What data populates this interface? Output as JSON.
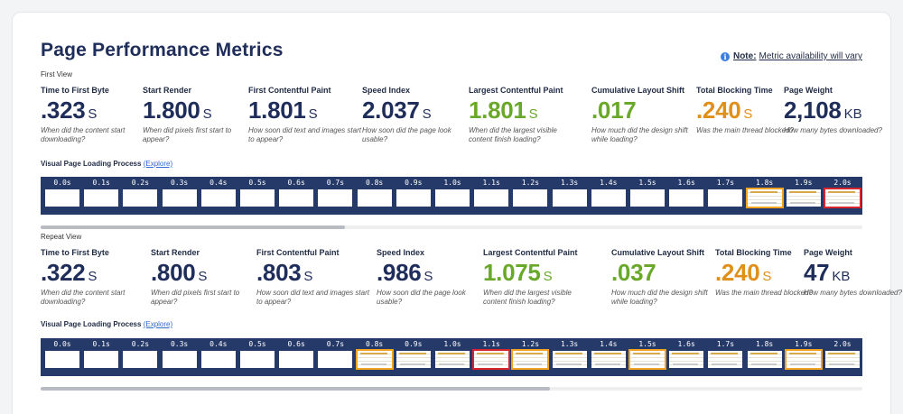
{
  "title": "Page Performance Metrics",
  "note": {
    "label": "Note:",
    "text": "Metric availability will vary",
    "icon": "info-icon"
  },
  "colors": {
    "navy": "#1f2d5a",
    "green": "#6aa82a",
    "orange": "#e0901a",
    "strip_bg": "#263a6a",
    "highlight_orange": "#f0a421",
    "highlight_red": "#d6262c"
  },
  "first_view": {
    "label": "First View",
    "metrics": [
      {
        "label": "Time to First Byte",
        "value": ".323",
        "unit": "S",
        "desc": "When did the content start downloading?",
        "color": "#1f2d5a"
      },
      {
        "label": "Start Render",
        "value": "1.800",
        "unit": "S",
        "desc": "When did pixels first start to appear?",
        "color": "#1f2d5a"
      },
      {
        "label": "First Contentful Paint",
        "value": "1.801",
        "unit": "S",
        "desc": "How soon did text and images start to appear?",
        "color": "#1f2d5a"
      },
      {
        "label": "Speed Index",
        "value": "2.037",
        "unit": "S",
        "desc": "How soon did the page look usable?",
        "color": "#1f2d5a"
      },
      {
        "label": "Largest Contentful Paint",
        "value": "1.801",
        "unit": "S",
        "desc": "When did the largest visible content finish loading?",
        "color": "#6aa82a"
      },
      {
        "label": "Cumulative Layout Shift",
        "value": ".017",
        "unit": "",
        "desc": "How much did the design shift while loading?",
        "color": "#6aa82a"
      },
      {
        "label": "Total Blocking Time",
        "value": ".240",
        "unit": "S",
        "desc": "Was the main thread blocked?",
        "color": "#e0901a"
      },
      {
        "label": "Page Weight",
        "value": "2,108",
        "unit": "KB",
        "desc": "How many bytes downloaded?",
        "color": "#1f2d5a"
      }
    ],
    "loading_label": "Visual Page Loading Process",
    "explore": "(Explore)",
    "frames": [
      {
        "time": "0.0s",
        "content": false,
        "border": ""
      },
      {
        "time": "0.1s",
        "content": false,
        "border": ""
      },
      {
        "time": "0.2s",
        "content": false,
        "border": ""
      },
      {
        "time": "0.3s",
        "content": false,
        "border": ""
      },
      {
        "time": "0.4s",
        "content": false,
        "border": ""
      },
      {
        "time": "0.5s",
        "content": false,
        "border": ""
      },
      {
        "time": "0.6s",
        "content": false,
        "border": ""
      },
      {
        "time": "0.7s",
        "content": false,
        "border": ""
      },
      {
        "time": "0.8s",
        "content": false,
        "border": ""
      },
      {
        "time": "0.9s",
        "content": false,
        "border": ""
      },
      {
        "time": "1.0s",
        "content": false,
        "border": ""
      },
      {
        "time": "1.1s",
        "content": false,
        "border": ""
      },
      {
        "time": "1.2s",
        "content": false,
        "border": ""
      },
      {
        "time": "1.3s",
        "content": false,
        "border": ""
      },
      {
        "time": "1.4s",
        "content": false,
        "border": ""
      },
      {
        "time": "1.5s",
        "content": false,
        "border": ""
      },
      {
        "time": "1.6s",
        "content": false,
        "border": ""
      },
      {
        "time": "1.7s",
        "content": false,
        "border": ""
      },
      {
        "time": "1.8s",
        "content": true,
        "border": "orange"
      },
      {
        "time": "1.9s",
        "content": true,
        "border": ""
      },
      {
        "time": "2.0s",
        "content": true,
        "border": "red"
      }
    ],
    "scroll_fraction": 0.37
  },
  "repeat_view": {
    "label": "Repeat View",
    "metrics": [
      {
        "label": "Time to First Byte",
        "value": ".322",
        "unit": "S",
        "desc": "When did the content start downloading?",
        "color": "#1f2d5a"
      },
      {
        "label": "Start Render",
        "value": ".800",
        "unit": "S",
        "desc": "When did pixels first start to appear?",
        "color": "#1f2d5a"
      },
      {
        "label": "First Contentful Paint",
        "value": ".803",
        "unit": "S",
        "desc": "How soon did text and images start to appear?",
        "color": "#1f2d5a"
      },
      {
        "label": "Speed Index",
        "value": ".986",
        "unit": "S",
        "desc": "How soon did the page look usable?",
        "color": "#1f2d5a"
      },
      {
        "label": "Largest Contentful Paint",
        "value": "1.075",
        "unit": "S",
        "desc": "When did the largest visible content finish loading?",
        "color": "#6aa82a"
      },
      {
        "label": "Cumulative Layout Shift",
        "value": ".037",
        "unit": "",
        "desc": "How much did the design shift while loading?",
        "color": "#6aa82a"
      },
      {
        "label": "Total Blocking Time",
        "value": ".240",
        "unit": "S",
        "desc": "Was the main thread blocked?",
        "color": "#e0901a"
      },
      {
        "label": "Page Weight",
        "value": "47",
        "unit": "KB",
        "desc": "How many bytes downloaded?",
        "color": "#1f2d5a"
      }
    ],
    "loading_label": "Visual Page Loading Process",
    "explore": "(Explore)",
    "frames": [
      {
        "time": "0.0s",
        "content": false,
        "border": ""
      },
      {
        "time": "0.1s",
        "content": false,
        "border": ""
      },
      {
        "time": "0.2s",
        "content": false,
        "border": ""
      },
      {
        "time": "0.3s",
        "content": false,
        "border": ""
      },
      {
        "time": "0.4s",
        "content": false,
        "border": ""
      },
      {
        "time": "0.5s",
        "content": false,
        "border": ""
      },
      {
        "time": "0.6s",
        "content": false,
        "border": ""
      },
      {
        "time": "0.7s",
        "content": false,
        "border": ""
      },
      {
        "time": "0.8s",
        "content": true,
        "border": "orange"
      },
      {
        "time": "0.9s",
        "content": true,
        "border": ""
      },
      {
        "time": "1.0s",
        "content": true,
        "border": ""
      },
      {
        "time": "1.1s",
        "content": true,
        "border": "red"
      },
      {
        "time": "1.2s",
        "content": true,
        "border": "orange"
      },
      {
        "time": "1.3s",
        "content": true,
        "border": ""
      },
      {
        "time": "1.4s",
        "content": true,
        "border": ""
      },
      {
        "time": "1.5s",
        "content": true,
        "border": "orange"
      },
      {
        "time": "1.6s",
        "content": true,
        "border": ""
      },
      {
        "time": "1.7s",
        "content": true,
        "border": ""
      },
      {
        "time": "1.8s",
        "content": true,
        "border": ""
      },
      {
        "time": "1.9s",
        "content": true,
        "border": "orange"
      },
      {
        "time": "2.0s",
        "content": true,
        "border": ""
      }
    ],
    "scroll_fraction": 0.62
  }
}
